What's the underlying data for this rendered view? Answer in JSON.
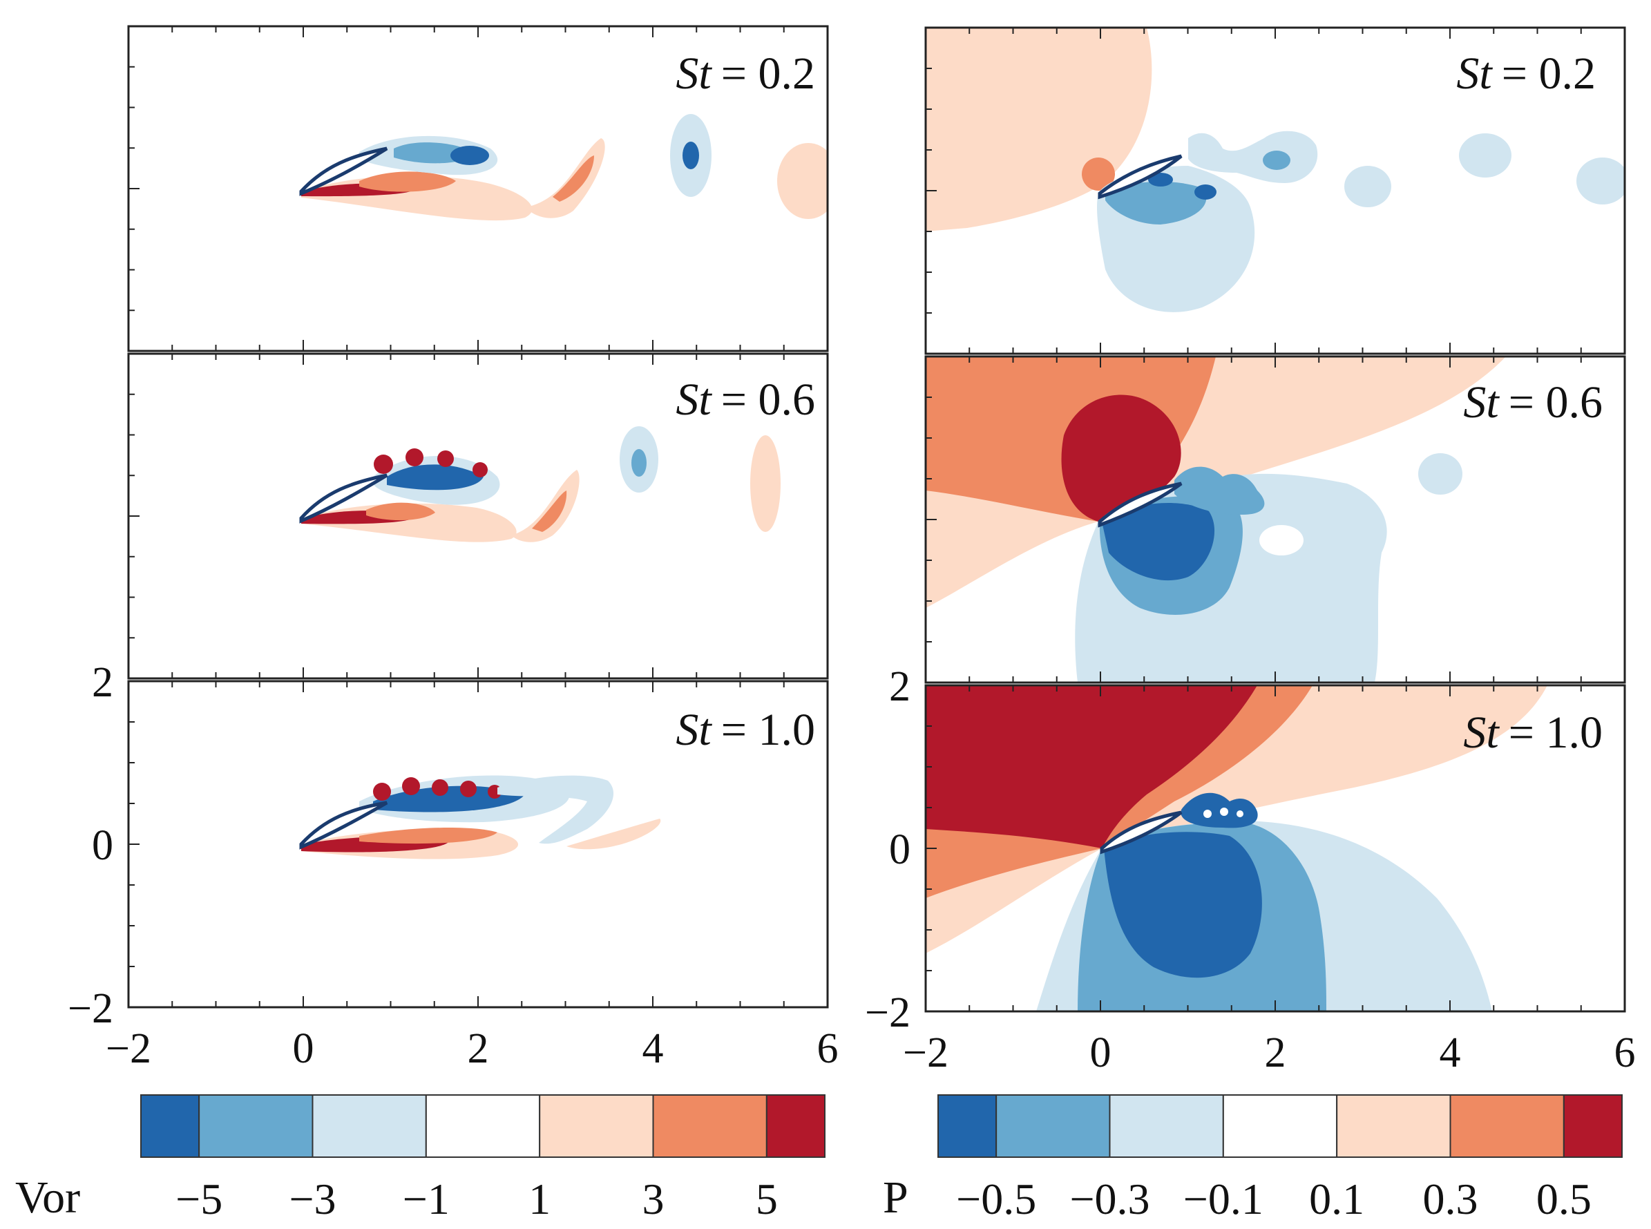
{
  "chart_data": [
    {
      "type": "heatmap",
      "field": "Vor",
      "panels": [
        {
          "label_var": "St",
          "label_val": "= 0.2"
        },
        {
          "label_var": "St",
          "label_val": "= 0.6"
        },
        {
          "label_var": "St",
          "label_val": "= 1.0"
        }
      ],
      "xlim": [
        -2,
        6
      ],
      "ylim": [
        -2,
        2
      ],
      "xticks": [
        "−2",
        "0",
        "2",
        "4",
        "6"
      ],
      "yticks": [
        "2",
        "0",
        "−2"
      ],
      "colorbar": {
        "title": "Vor",
        "levels": [
          "−5",
          "−3",
          "−1",
          "1",
          "3",
          "5"
        ],
        "colors": [
          "#2166ac",
          "#67a9cf",
          "#d1e5f0",
          "#ffffff",
          "#fddbc7",
          "#ef8a62",
          "#b2182b"
        ]
      }
    },
    {
      "type": "heatmap",
      "field": "P",
      "panels": [
        {
          "label_var": "St",
          "label_val": "= 0.2"
        },
        {
          "label_var": "St",
          "label_val": "= 0.6"
        },
        {
          "label_var": "St",
          "label_val": "= 1.0"
        }
      ],
      "xlim": [
        -2,
        6
      ],
      "ylim": [
        -2,
        2
      ],
      "xticks": [
        "−2",
        "0",
        "2",
        "4",
        "6"
      ],
      "yticks": [
        "2",
        "0",
        "−2"
      ],
      "colorbar": {
        "title": "P",
        "levels": [
          "−0.5",
          "−0.3",
          "−0.1",
          "0.1",
          "0.3",
          "0.5"
        ],
        "colors": [
          "#2166ac",
          "#67a9cf",
          "#d1e5f0",
          "#ffffff",
          "#fddbc7",
          "#ef8a62",
          "#b2182b"
        ]
      }
    }
  ]
}
